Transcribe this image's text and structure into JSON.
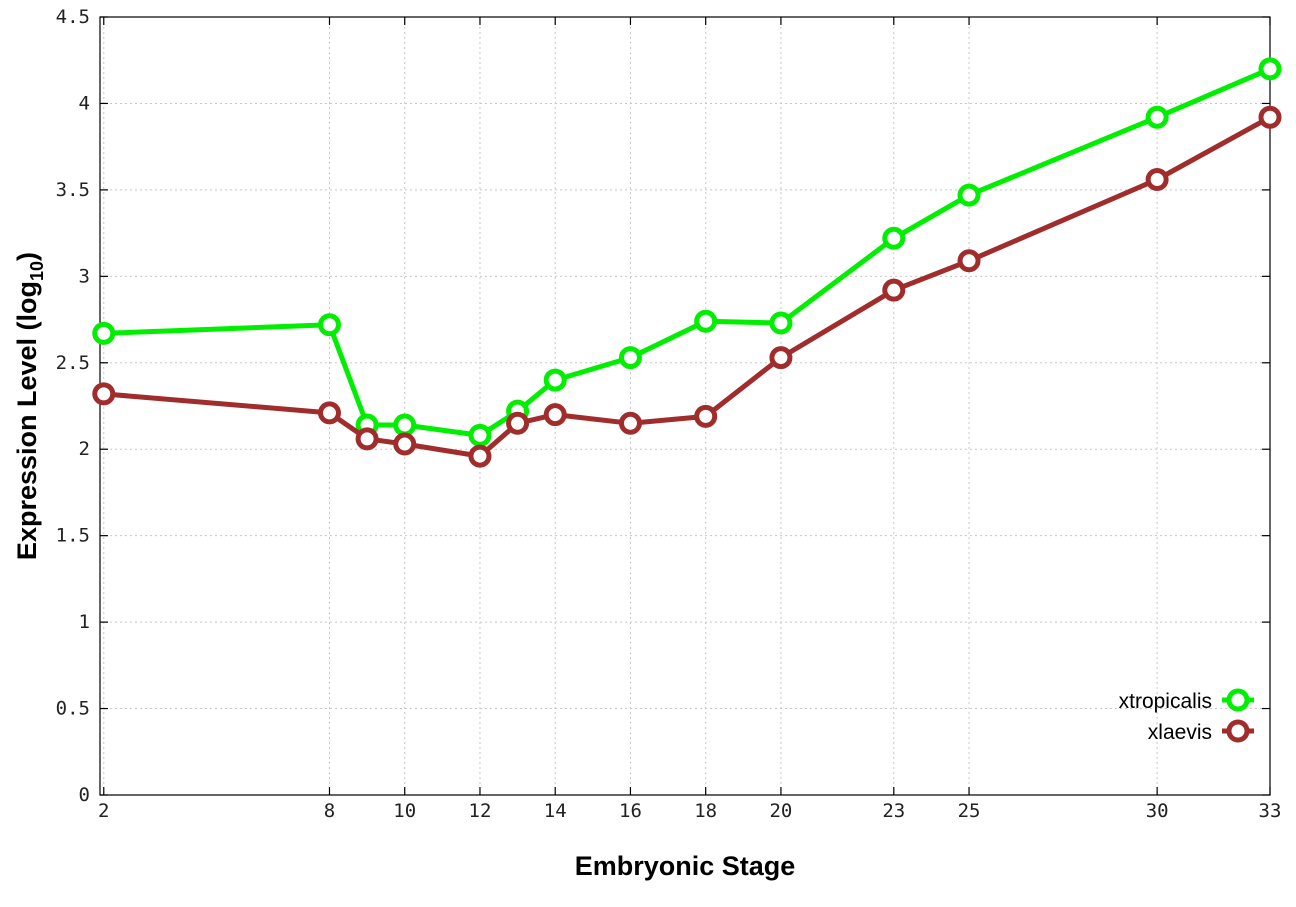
{
  "chart_data": {
    "type": "line",
    "title": "",
    "xlabel": "Embryonic Stage",
    "ylabel_main": "Expression Level (log",
    "ylabel_sub": "10",
    "ylabel_close": ")",
    "x": [
      2,
      8,
      9,
      10,
      12,
      13,
      14,
      16,
      18,
      20,
      23,
      25,
      30,
      33
    ],
    "xticks": [
      "2",
      "8",
      "10",
      "12",
      "14",
      "16",
      "18",
      "20",
      "23",
      "25",
      "30",
      "33"
    ],
    "yticks": [
      "0",
      "0.5",
      "1",
      "1.5",
      "2",
      "2.5",
      "3",
      "3.5",
      "4",
      "4.5"
    ],
    "xlim": [
      1.9,
      33
    ],
    "ylim": [
      0,
      4.5
    ],
    "grid": true,
    "legend_position": "bottom-right",
    "series": [
      {
        "name": "xtropicalis",
        "color": "#00ee00",
        "values": [
          2.67,
          2.72,
          2.14,
          2.14,
          2.08,
          2.22,
          2.4,
          2.53,
          2.74,
          2.73,
          3.22,
          3.47,
          3.92,
          4.2
        ]
      },
      {
        "name": "xlaevis",
        "color": "#a02c2c",
        "values": [
          2.32,
          2.21,
          2.06,
          2.03,
          1.96,
          2.15,
          2.2,
          2.15,
          2.19,
          2.53,
          2.92,
          3.09,
          3.56,
          3.92
        ]
      }
    ]
  }
}
